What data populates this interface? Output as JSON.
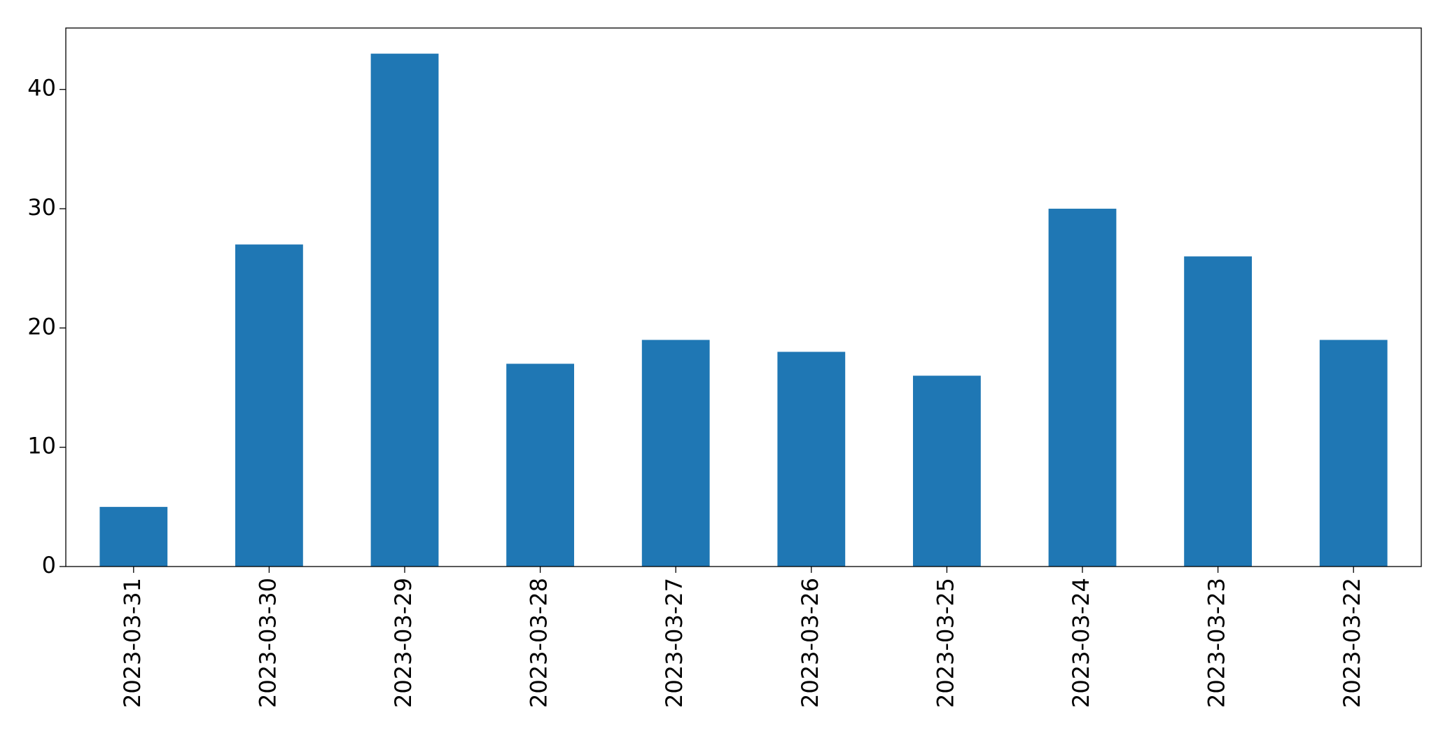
{
  "chart_data": {
    "type": "bar",
    "categories": [
      "2023-03-31",
      "2023-03-30",
      "2023-03-29",
      "2023-03-28",
      "2023-03-27",
      "2023-03-26",
      "2023-03-25",
      "2023-03-24",
      "2023-03-23",
      "2023-03-22"
    ],
    "values": [
      5,
      27,
      43,
      17,
      19,
      18,
      16,
      30,
      26,
      19
    ],
    "color": "#1f77b4",
    "ylim": [
      0,
      45.15
    ],
    "yticks": [
      0,
      10,
      20,
      30,
      40
    ],
    "grid": false
  }
}
